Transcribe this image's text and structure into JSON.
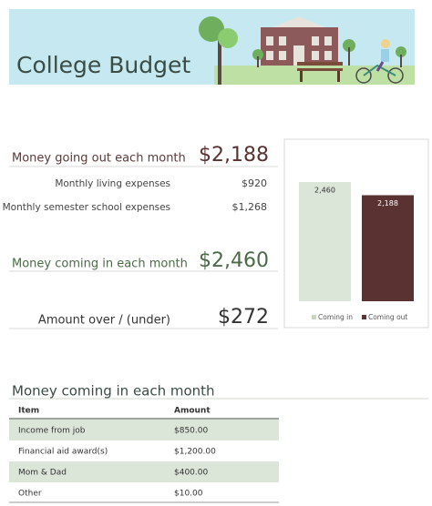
{
  "header": {
    "title": "College Budget"
  },
  "summary": {
    "out": {
      "label": "Money going out each month",
      "value": "$2,188"
    },
    "items": [
      {
        "label": "Monthly living expenses",
        "value": "$920"
      },
      {
        "label": "Monthly semester school expenses",
        "value": "$1,268"
      }
    ],
    "in": {
      "label": "Money coming in each month",
      "value": "$2,460"
    },
    "balance": {
      "label": "Amount over / (under)",
      "value": "$272"
    }
  },
  "chart_data": {
    "type": "bar",
    "categories": [
      null
    ],
    "series": [
      {
        "name": "Coming in",
        "color": "#dbe5d8",
        "values": [
          2460
        ],
        "value_labels": [
          "2,460"
        ]
      },
      {
        "name": "Coming out",
        "color": "#5a3232",
        "values": [
          2188
        ],
        "value_labels": [
          "2,188"
        ]
      }
    ],
    "legend": "bottom"
  },
  "table": {
    "title": "Money coming in each month",
    "columns": [
      "Item",
      "Amount"
    ],
    "rows": [
      [
        "Income from job",
        "$850.00"
      ],
      [
        "Financial aid award(s)",
        "$1,200.00"
      ],
      [
        "Mom & Dad",
        "$400.00"
      ],
      [
        "Other",
        "$10.00"
      ]
    ]
  }
}
